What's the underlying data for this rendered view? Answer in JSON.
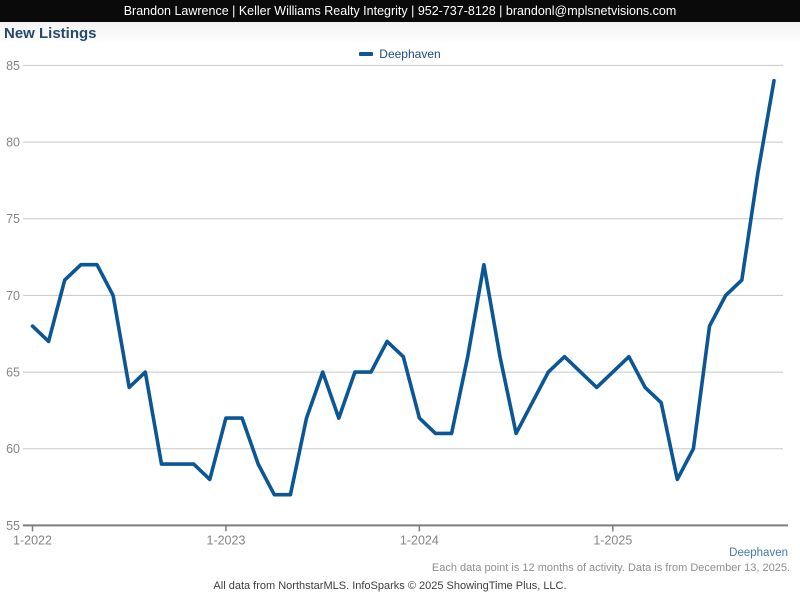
{
  "header": {
    "contact_line": "Brandon Lawrence | Keller Williams Realty Integrity | 952-737-8128 | brandonl@mplsnetvisions.com"
  },
  "title": "New Listings",
  "legend": {
    "series_label": "Deephaven"
  },
  "footer": {
    "series_note": "Deephaven",
    "data_note": "Each data point is 12 months of activity. Data is from December 13, 2025.",
    "attribution": "All data from NorthstarMLS. InfoSparks © 2025 ShowingTime Plus, LLC."
  },
  "colors": {
    "header_bg": "#0a0a0a",
    "title": "#254a6e",
    "legend_text": "#1c4d7c",
    "footer_blue": "#4379ad",
    "note_gray": "#8e8e8e",
    "attribution_gray": "#3d3d3d"
  },
  "chart_data": {
    "type": "line",
    "title": "New Listings",
    "xlabel": "",
    "ylabel": "",
    "x_frequency": "monthly",
    "x_start_label": "1-2022",
    "x_end_label": "11-2025",
    "x_ticks": [
      {
        "label": "1-2022",
        "month_index": 0
      },
      {
        "label": "1-2023",
        "month_index": 12
      },
      {
        "label": "1-2024",
        "month_index": 24
      },
      {
        "label": "1-2025",
        "month_index": 36
      }
    ],
    "y_ticks": [
      55,
      60,
      65,
      70,
      75,
      80,
      85
    ],
    "ylim": [
      55,
      85
    ],
    "grid": "horizontal",
    "legend_position": "top-center",
    "line_color": "#0b5796",
    "grid_color": "#c8c8c8",
    "axis_color": "#7d7d7d",
    "axis_text_color": "#848484",
    "series": [
      {
        "name": "Deephaven",
        "values": [
          68,
          67,
          71,
          72,
          72,
          70,
          64,
          65,
          59,
          59,
          59,
          58,
          62,
          62,
          59,
          57,
          57,
          62,
          65,
          62,
          65,
          65,
          67,
          66,
          62,
          61,
          61,
          66,
          72,
          66,
          61,
          63,
          65,
          66,
          65,
          64,
          65,
          66,
          64,
          63,
          58,
          60,
          68,
          70,
          71,
          78,
          84
        ]
      }
    ]
  }
}
